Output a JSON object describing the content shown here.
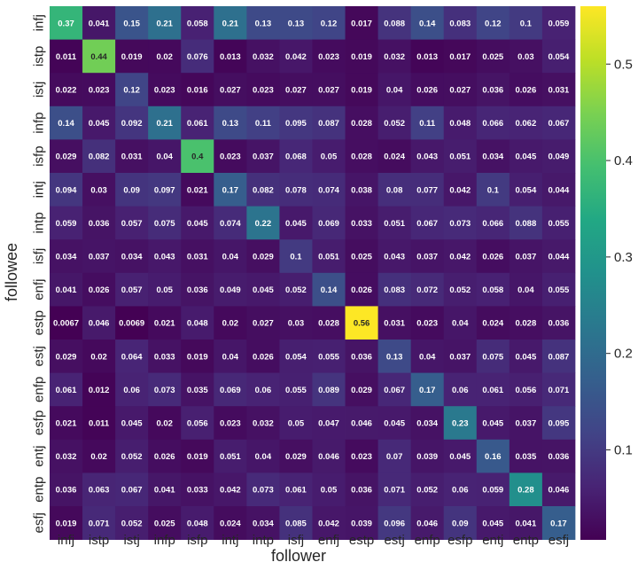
{
  "chart_data": {
    "type": "heatmap",
    "title": "",
    "xlabel": "follower",
    "ylabel": "followee",
    "x_categories": [
      "infj",
      "istp",
      "istj",
      "infp",
      "isfp",
      "intj",
      "intp",
      "isfj",
      "enfj",
      "estp",
      "estj",
      "enfp",
      "esfp",
      "entj",
      "entp",
      "esfj"
    ],
    "y_categories": [
      "infj",
      "istp",
      "istj",
      "infp",
      "isfp",
      "intj",
      "intp",
      "isfj",
      "enfj",
      "estp",
      "estj",
      "enfp",
      "esfp",
      "entj",
      "entp",
      "esfj"
    ],
    "values": [
      [
        "0.37",
        "0.041",
        "0.15",
        "0.21",
        "0.058",
        "0.21",
        "0.13",
        "0.13",
        "0.12",
        "0.017",
        "0.088",
        "0.14",
        "0.083",
        "0.12",
        "0.1",
        "0.059"
      ],
      [
        "0.011",
        "0.44",
        "0.019",
        "0.02",
        "0.076",
        "0.013",
        "0.032",
        "0.042",
        "0.023",
        "0.019",
        "0.032",
        "0.013",
        "0.017",
        "0.025",
        "0.03",
        "0.054"
      ],
      [
        "0.022",
        "0.023",
        "0.12",
        "0.023",
        "0.016",
        "0.027",
        "0.023",
        "0.027",
        "0.027",
        "0.019",
        "0.04",
        "0.026",
        "0.027",
        "0.036",
        "0.026",
        "0.031"
      ],
      [
        "0.14",
        "0.045",
        "0.092",
        "0.21",
        "0.061",
        "0.13",
        "0.11",
        "0.095",
        "0.087",
        "0.028",
        "0.052",
        "0.11",
        "0.048",
        "0.066",
        "0.062",
        "0.067"
      ],
      [
        "0.029",
        "0.082",
        "0.031",
        "0.04",
        "0.4",
        "0.023",
        "0.037",
        "0.068",
        "0.05",
        "0.028",
        "0.024",
        "0.043",
        "0.051",
        "0.034",
        "0.045",
        "0.049"
      ],
      [
        "0.094",
        "0.03",
        "0.09",
        "0.097",
        "0.021",
        "0.17",
        "0.082",
        "0.078",
        "0.074",
        "0.038",
        "0.08",
        "0.077",
        "0.042",
        "0.1",
        "0.054",
        "0.044"
      ],
      [
        "0.059",
        "0.036",
        "0.057",
        "0.075",
        "0.045",
        "0.074",
        "0.22",
        "0.045",
        "0.069",
        "0.033",
        "0.051",
        "0.067",
        "0.073",
        "0.066",
        "0.088",
        "0.055"
      ],
      [
        "0.034",
        "0.037",
        "0.034",
        "0.043",
        "0.031",
        "0.04",
        "0.029",
        "0.1",
        "0.051",
        "0.025",
        "0.043",
        "0.037",
        "0.042",
        "0.026",
        "0.037",
        "0.044"
      ],
      [
        "0.041",
        "0.026",
        "0.057",
        "0.05",
        "0.036",
        "0.049",
        "0.045",
        "0.052",
        "0.14",
        "0.026",
        "0.083",
        "0.072",
        "0.052",
        "0.058",
        "0.04",
        "0.055"
      ],
      [
        "0.0067",
        "0.046",
        "0.0069",
        "0.021",
        "0.048",
        "0.02",
        "0.027",
        "0.03",
        "0.028",
        "0.56",
        "0.031",
        "0.023",
        "0.04",
        "0.024",
        "0.028",
        "0.036"
      ],
      [
        "0.029",
        "0.02",
        "0.064",
        "0.033",
        "0.019",
        "0.04",
        "0.026",
        "0.054",
        "0.055",
        "0.036",
        "0.13",
        "0.04",
        "0.037",
        "0.075",
        "0.045",
        "0.087"
      ],
      [
        "0.061",
        "0.012",
        "0.06",
        "0.073",
        "0.035",
        "0.069",
        "0.06",
        "0.055",
        "0.089",
        "0.029",
        "0.067",
        "0.17",
        "0.06",
        "0.061",
        "0.056",
        "0.071"
      ],
      [
        "0.021",
        "0.011",
        "0.045",
        "0.02",
        "0.056",
        "0.023",
        "0.032",
        "0.05",
        "0.047",
        "0.046",
        "0.045",
        "0.034",
        "0.23",
        "0.045",
        "0.037",
        "0.095"
      ],
      [
        "0.032",
        "0.02",
        "0.052",
        "0.026",
        "0.019",
        "0.051",
        "0.04",
        "0.029",
        "0.046",
        "0.023",
        "0.07",
        "0.039",
        "0.045",
        "0.16",
        "0.035",
        "0.036"
      ],
      [
        "0.036",
        "0.063",
        "0.067",
        "0.041",
        "0.033",
        "0.042",
        "0.073",
        "0.061",
        "0.05",
        "0.036",
        "0.071",
        "0.052",
        "0.06",
        "0.059",
        "0.28",
        "0.046"
      ],
      [
        "0.019",
        "0.071",
        "0.052",
        "0.025",
        "0.048",
        "0.024",
        "0.034",
        "0.085",
        "0.042",
        "0.039",
        "0.096",
        "0.046",
        "0.09",
        "0.045",
        "0.041",
        "0.17"
      ]
    ],
    "colormap": "viridis",
    "colorbar": {
      "range": [
        0.0067,
        0.56
      ],
      "ticks": [
        0.1,
        0.2,
        0.3,
        0.4,
        0.5
      ],
      "tick_labels": [
        "0.1",
        "0.2",
        "0.3",
        "0.4",
        "0.5"
      ]
    },
    "grid": false,
    "legend": "colorbar-right",
    "annotation_colors": {
      "dark_cells": "#ffffff",
      "light_cells": "#262626"
    }
  }
}
